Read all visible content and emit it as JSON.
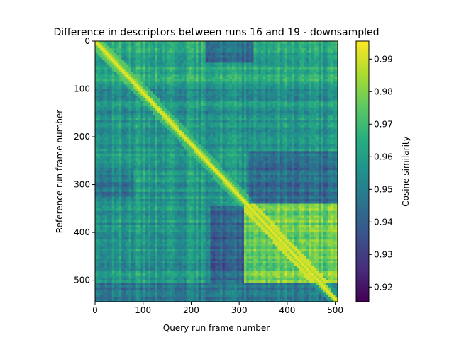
{
  "chart_data": {
    "type": "heatmap",
    "title": "Difference in descriptors between runs 16 and 19 - downsampled",
    "xlabel": "Query run frame number",
    "ylabel": "Reference run frame number",
    "colorbar_label": "Cosine similarity",
    "colormap": "viridis",
    "xlim": [
      0,
      505
    ],
    "ylim": [
      545,
      0
    ],
    "x_ticks": [
      0,
      100,
      200,
      300,
      400,
      500
    ],
    "y_ticks": [
      0,
      100,
      200,
      300,
      400,
      500
    ],
    "x_tick_labels": [
      "0",
      "100",
      "200",
      "300",
      "400",
      "500"
    ],
    "y_tick_labels": [
      "0",
      "100",
      "200",
      "300",
      "400",
      "500"
    ],
    "colorbar_range": [
      0.9155,
      0.9955
    ],
    "colorbar_ticks": [
      0.92,
      0.93,
      0.94,
      0.95,
      0.96,
      0.97,
      0.98,
      0.99
    ],
    "colorbar_tick_labels": [
      "0.92",
      "0.93",
      "0.94",
      "0.95",
      "0.96",
      "0.97",
      "0.98",
      "0.99"
    ],
    "background_similarity": 0.958,
    "diagonal": {
      "from": [
        0,
        0
      ],
      "to": [
        505,
        545
      ],
      "similarity": 0.993
    },
    "regions": [
      {
        "x": [
          310,
          505
        ],
        "y": [
          340,
          505
        ],
        "similarity": 0.978,
        "note": "high-similarity block"
      },
      {
        "x": [
          0,
          505
        ],
        "y": [
          505,
          545
        ],
        "similarity": 0.947
      },
      {
        "x": [
          320,
          505
        ],
        "y": [
          230,
          340
        ],
        "similarity": 0.944
      },
      {
        "x": [
          240,
          310
        ],
        "y": [
          345,
          545
        ],
        "similarity": 0.941
      },
      {
        "x": [
          230,
          330
        ],
        "y": [
          0,
          45
        ],
        "similarity": 0.945
      },
      {
        "x": [
          0,
          80
        ],
        "y": [
          270,
          330
        ],
        "similarity": 0.949
      },
      {
        "x": [
          0,
          505
        ],
        "y": [
          0,
          90
        ],
        "similarity": 0.963,
        "note": "upper band slightly brighter"
      }
    ]
  }
}
